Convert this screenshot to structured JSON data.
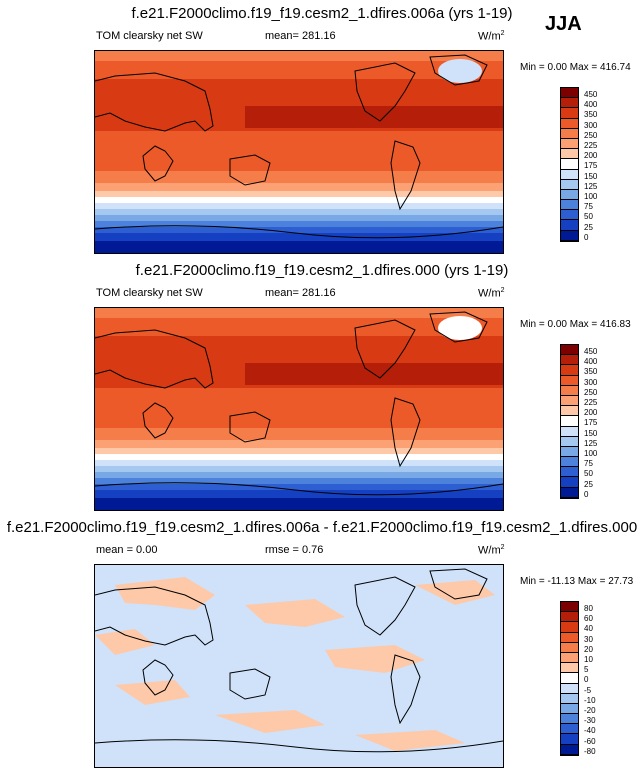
{
  "season": "JJA",
  "panels": [
    {
      "title": "f.e21.F2000climo.f19_f19.cesm2_1.dfires.006a (yrs 1-19)",
      "left_label": "TOM clearsky net SW",
      "center_label": "mean= 281.16",
      "units": "W/m",
      "units_sup": "2",
      "minmax": "Min =  0.00 Max = 416.74"
    },
    {
      "title": "f.e21.F2000climo.f19_f19.cesm2_1.dfires.000 (yrs 1-19)",
      "left_label": "TOM clearsky net SW",
      "center_label": "mean= 281.16",
      "units": "W/m",
      "units_sup": "2",
      "minmax": "Min =  0.00 Max = 416.83"
    },
    {
      "title": "f.e21.F2000climo.f19_f19.cesm2_1.dfires.006a - f.e21.F2000climo.f19_f19.cesm2_1.dfires.000",
      "left_label": "mean =   0.00",
      "center_label": "rmse =   0.76",
      "units": "W/m",
      "units_sup": "2",
      "minmax": "Min = -11.13 Max =  27.73"
    }
  ],
  "chart_data": [
    {
      "type": "heatmap",
      "title": "f.e21.F2000climo.f19_f19.cesm2_1.dfires.006a (yrs 1-19)",
      "variable": "TOM clearsky net SW",
      "mean": 281.16,
      "min": 0.0,
      "max": 416.74,
      "colorbar_levels": [
        450,
        400,
        350,
        300,
        250,
        225,
        200,
        175,
        150,
        125,
        100,
        75,
        50,
        25,
        0
      ],
      "colorbar_colors": [
        "#7d0000",
        "#b51f0a",
        "#d83a14",
        "#eb5a28",
        "#f57d4a",
        "#fba173",
        "#fdc9a9",
        "#ffffff",
        "#cfe2fa",
        "#a4c8f0",
        "#78a8e6",
        "#4d82dc",
        "#2d5ed2",
        "#1640c2",
        "#001a96"
      ]
    },
    {
      "type": "heatmap",
      "title": "f.e21.F2000climo.f19_f19.cesm2_1.dfires.000 (yrs 1-19)",
      "variable": "TOM clearsky net SW",
      "mean": 281.16,
      "min": 0.0,
      "max": 416.83,
      "colorbar_levels": [
        450,
        400,
        350,
        300,
        250,
        225,
        200,
        175,
        150,
        125,
        100,
        75,
        50,
        25,
        0
      ],
      "colorbar_colors": [
        "#7d0000",
        "#b51f0a",
        "#d83a14",
        "#eb5a28",
        "#f57d4a",
        "#fba173",
        "#fdc9a9",
        "#ffffff",
        "#cfe2fa",
        "#a4c8f0",
        "#78a8e6",
        "#4d82dc",
        "#2d5ed2",
        "#1640c2",
        "#001a96"
      ]
    },
    {
      "type": "heatmap",
      "title": "f.e21.F2000climo.f19_f19.cesm2_1.dfires.006a - f.e21.F2000climo.f19_f19.cesm2_1.dfires.000",
      "mean": 0.0,
      "rmse": 0.76,
      "min": -11.13,
      "max": 27.73,
      "colorbar_levels": [
        80,
        60,
        40,
        30,
        20,
        10,
        5,
        0,
        -5,
        -10,
        -20,
        -30,
        -40,
        -60,
        -80
      ],
      "colorbar_colors": [
        "#7d0000",
        "#b51f0a",
        "#d83a14",
        "#eb5a28",
        "#f57d4a",
        "#fba173",
        "#fdc9a9",
        "#ffffff",
        "#cfe2fa",
        "#a4c8f0",
        "#78a8e6",
        "#4d82dc",
        "#2d5ed2",
        "#1640c2",
        "#001a96"
      ]
    }
  ]
}
